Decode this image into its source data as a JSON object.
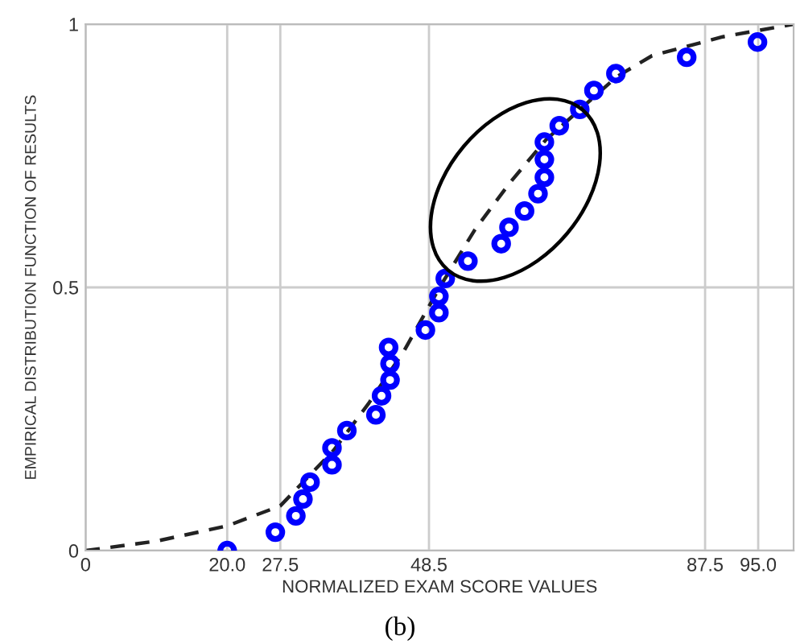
{
  "chart_data": {
    "type": "scatter",
    "xlabel": "NORMALIZED EXAM SCORE VALUES",
    "ylabel": "EMPIRICAL DISTRIBUTION FUNCTION OF RESULTS",
    "annotations": [
      "(b)"
    ],
    "xlim": [
      0,
      100
    ],
    "ylim": [
      0,
      1
    ],
    "xticks": [
      0,
      {
        "value": 20,
        "label": "20.0"
      },
      27.5,
      48.5,
      87.5,
      {
        "value": 95,
        "label": "95.0"
      }
    ],
    "yticks": [
      0,
      0.5,
      1
    ],
    "grid": true,
    "legend": false,
    "series": [
      {
        "color": "#0000ff",
        "marker": "circle",
        "x": [
          20.0,
          26.8,
          29.7,
          30.7,
          31.7,
          34.8,
          34.8,
          36.9,
          41.0,
          41.8,
          43.0,
          43.0,
          42.8,
          48.0,
          49.9,
          49.9,
          50.8,
          54.0,
          58.7,
          59.8,
          62.0,
          63.9,
          64.8,
          64.8,
          64.8,
          66.9,
          69.8,
          71.8,
          74.9,
          84.9,
          94.9
        ],
        "values": [
          0.0,
          0.035,
          0.066,
          0.098,
          0.13,
          0.163,
          0.195,
          0.228,
          0.258,
          0.294,
          0.324,
          0.355,
          0.386,
          0.419,
          0.452,
          0.483,
          0.517,
          0.55,
          0.583,
          0.614,
          0.645,
          0.678,
          0.709,
          0.743,
          0.776,
          0.807,
          0.838,
          0.874,
          0.906,
          0.937,
          0.966
        ]
      },
      {
        "type": "line",
        "color": "#222222",
        "line_style": "dashed",
        "marker": "none",
        "x": [
          0,
          10,
          20,
          27.5,
          35,
          40,
          45,
          50,
          55,
          60,
          65,
          70,
          75,
          80,
          90,
          100
        ],
        "values": [
          0,
          0.018,
          0.047,
          0.085,
          0.19,
          0.28,
          0.38,
          0.5,
          0.61,
          0.7,
          0.78,
          0.84,
          0.9,
          0.94,
          0.976,
          1.0
        ]
      }
    ]
  }
}
